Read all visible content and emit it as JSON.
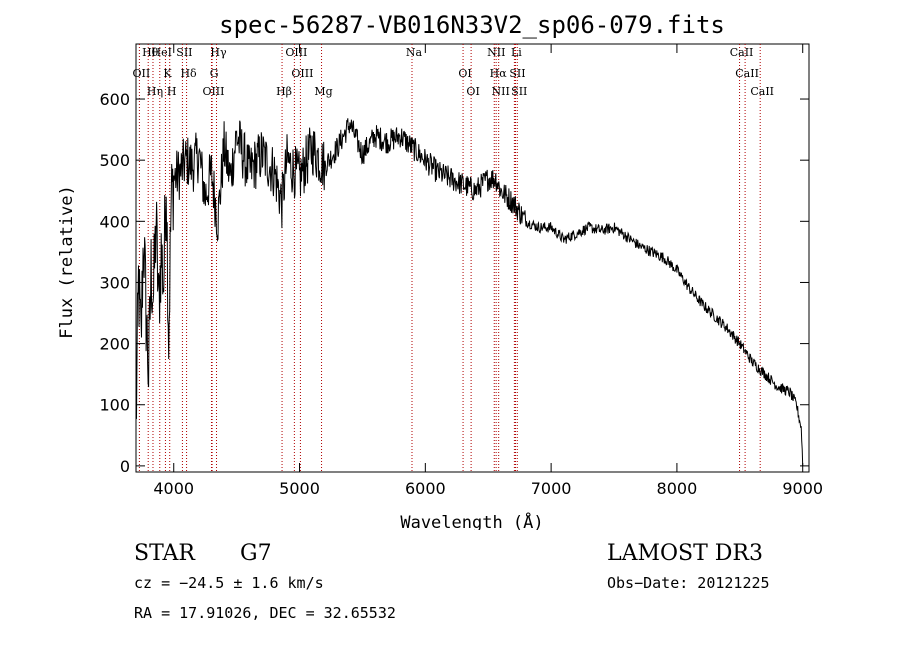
{
  "chart_data": {
    "type": "line",
    "title": "spec-56287-VB016N33V2_sp06-079.fits",
    "xlabel": "Wavelength (Å)",
    "ylabel": "Flux (relative)",
    "xlim": [
      3700,
      9050
    ],
    "ylim": [
      -10,
      690
    ],
    "xticks": [
      4000,
      5000,
      6000,
      7000,
      8000,
      9000
    ],
    "yticks": [
      0,
      100,
      200,
      300,
      400,
      500,
      600
    ],
    "line_color": "#000000",
    "marker_color": "#b00000",
    "series": [
      {
        "name": "flux",
        "x": [
          3700,
          3720,
          3740,
          3760,
          3780,
          3800,
          3820,
          3840,
          3860,
          3880,
          3900,
          3920,
          3940,
          3960,
          3980,
          4000,
          4050,
          4100,
          4150,
          4200,
          4250,
          4300,
          4350,
          4400,
          4450,
          4500,
          4600,
          4700,
          4800,
          4860,
          4900,
          5000,
          5100,
          5200,
          5300,
          5400,
          5500,
          5600,
          5700,
          5800,
          5900,
          6000,
          6100,
          6200,
          6300,
          6400,
          6500,
          6560,
          6600,
          6700,
          6800,
          6900,
          7000,
          7100,
          7200,
          7300,
          7400,
          7500,
          7600,
          7700,
          7800,
          7900,
          8000,
          8100,
          8200,
          8300,
          8400,
          8500,
          8600,
          8700,
          8800,
          8900,
          8950,
          8990,
          9000
        ],
        "y": [
          60,
          300,
          200,
          380,
          250,
          150,
          320,
          280,
          400,
          260,
          350,
          300,
          480,
          210,
          430,
          470,
          480,
          500,
          490,
          510,
          440,
          480,
          400,
          520,
          470,
          540,
          480,
          510,
          480,
          430,
          500,
          470,
          520,
          490,
          520,
          560,
          510,
          540,
          530,
          540,
          520,
          500,
          480,
          470,
          460,
          450,
          470,
          470,
          450,
          430,
          400,
          390,
          390,
          370,
          380,
          390,
          385,
          390,
          375,
          360,
          350,
          340,
          320,
          290,
          265,
          245,
          225,
          200,
          170,
          150,
          130,
          120,
          100,
          60,
          0
        ]
      }
    ],
    "lines": [
      {
        "name": "Hθ",
        "wavelength": 3797
      },
      {
        "name": "OII",
        "wavelength": 3727
      },
      {
        "name": "Hη",
        "wavelength": 3835
      },
      {
        "name": "HeI",
        "wavelength": 3889
      },
      {
        "name": "K",
        "wavelength": 3934
      },
      {
        "name": "H",
        "wavelength": 3968
      },
      {
        "name": "SII",
        "wavelength": 4069
      },
      {
        "name": "Hδ",
        "wavelength": 4102
      },
      {
        "name": "OIII",
        "wavelength": 4300
      },
      {
        "name": "Hγ",
        "wavelength": 4340
      },
      {
        "name": "G",
        "wavelength": 4305
      },
      {
        "name": "Hβ",
        "wavelength": 4861
      },
      {
        "name": "OIII",
        "wavelength": 4959
      },
      {
        "name": "OIII",
        "wavelength": 5007
      },
      {
        "name": "Mg",
        "wavelength": 5175
      },
      {
        "name": "Na",
        "wavelength": 5894
      },
      {
        "name": "OI",
        "wavelength": 6300
      },
      {
        "name": "OI",
        "wavelength": 6364
      },
      {
        "name": "NII",
        "wavelength": 6548
      },
      {
        "name": "Hα",
        "wavelength": 6563
      },
      {
        "name": "NII",
        "wavelength": 6583
      },
      {
        "name": "Li",
        "wavelength": 6708
      },
      {
        "name": "SII",
        "wavelength": 6717
      },
      {
        "name": "SII",
        "wavelength": 6731
      },
      {
        "name": "CaII",
        "wavelength": 8498
      },
      {
        "name": "CaII",
        "wavelength": 8542
      },
      {
        "name": "CaII",
        "wavelength": 8662
      }
    ]
  },
  "info": {
    "object_type": "STAR",
    "subclass": "G7",
    "cz": "cz = −24.5 ± 1.6 km/s",
    "coords": "RA =  17.91026, DEC =  32.65532",
    "survey": "LAMOST DR3",
    "obs_date": "Obs−Date: 20121225"
  }
}
